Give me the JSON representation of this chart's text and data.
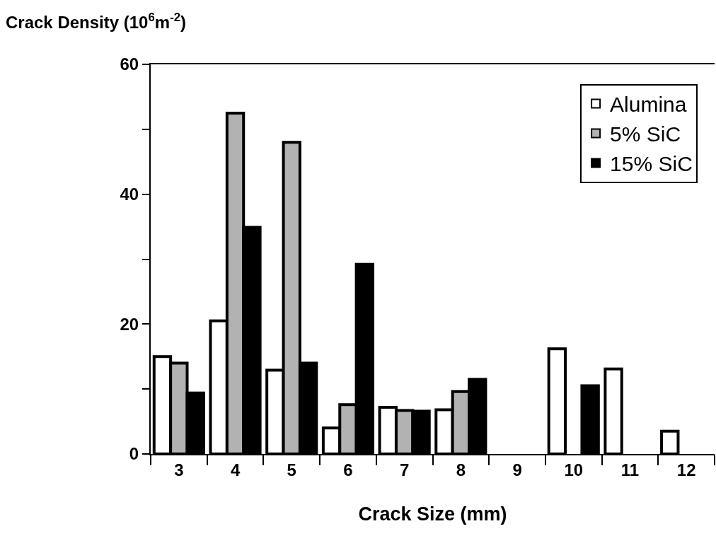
{
  "chart_data": {
    "type": "bar",
    "ylabel": "Crack Density (10$^{6}$m$^{-2}$)",
    "xlabel": "Crack Size (mm)",
    "categories": [
      "3",
      "4",
      "5",
      "6",
      "7",
      "8",
      "9",
      "10",
      "11",
      "12"
    ],
    "series": [
      {
        "name": "Alumina",
        "color": "#ffffff",
        "values": [
          15.0,
          20.5,
          12.9,
          4.0,
          7.2,
          6.8,
          null,
          16.2,
          13.1,
          3.5
        ]
      },
      {
        "name": "5% SiC",
        "color": "#b2b2b2",
        "values": [
          14.0,
          52.5,
          48.0,
          7.6,
          6.7,
          9.6,
          null,
          null,
          null,
          null
        ]
      },
      {
        "name": "15% SiC",
        "color": "#000000",
        "values": [
          9.4,
          34.9,
          14.0,
          29.2,
          6.6,
          11.5,
          null,
          10.5,
          null,
          null
        ]
      }
    ],
    "ylim": [
      0,
      60
    ],
    "yticks": [
      0,
      {
        "value": 10,
        "label": null
      },
      20,
      {
        "value": 30,
        "label": null
      },
      40,
      {
        "value": 50,
        "label": null
      },
      60
    ],
    "legend": "top right"
  }
}
